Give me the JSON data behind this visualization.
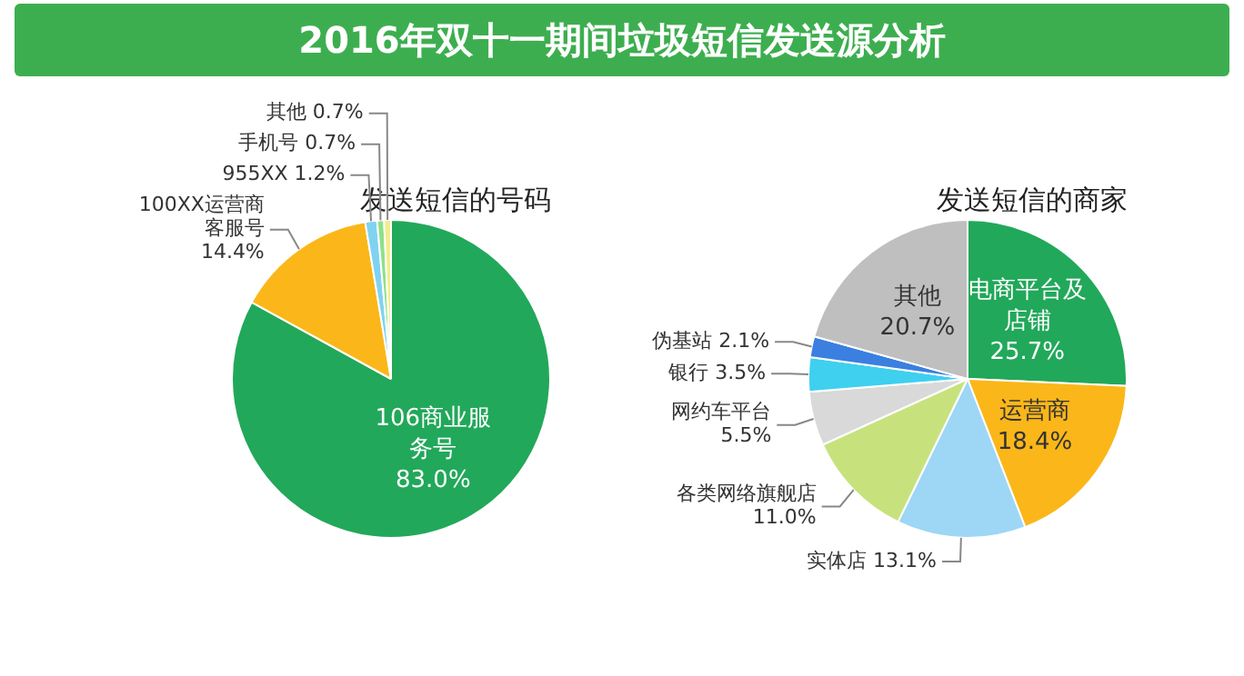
{
  "chart_data": [
    {
      "type": "pie",
      "title": "2016年双十一期间垃圾短信发送源分析",
      "subtitle": "发送短信的号码",
      "categories": [
        "106商业服务号",
        "100XX运营商客服号",
        "955XX",
        "手机号",
        "其他"
      ],
      "values": [
        83.0,
        14.4,
        1.2,
        0.7,
        0.7
      ],
      "value_labels": [
        "83.0%",
        "14.4%",
        "1.2%",
        "0.7%",
        "0.7%"
      ],
      "colors": [
        "#22a85a",
        "#fbb719",
        "#7fd3f0",
        "#8fe08a",
        "#f2ee8a"
      ]
    },
    {
      "type": "pie",
      "subtitle": "发送短信的商家",
      "categories": [
        "电商平台及店铺",
        "运营商",
        "实体店",
        "各类网络旗舰店",
        "网约车平台",
        "银行",
        "伪基站",
        "其他"
      ],
      "values": [
        25.7,
        18.4,
        13.1,
        11.0,
        5.5,
        3.5,
        2.1,
        20.7
      ],
      "value_labels": [
        "25.7%",
        "18.4%",
        "13.1%",
        "11.0%",
        "5.5%",
        "3.5%",
        "2.1%",
        "20.7%"
      ],
      "colors": [
        "#22a85a",
        "#fbb719",
        "#9ed6f5",
        "#c7e27d",
        "#d9d9d9",
        "#3fd0ef",
        "#3b7fe0",
        "#bfbfbf"
      ]
    }
  ]
}
